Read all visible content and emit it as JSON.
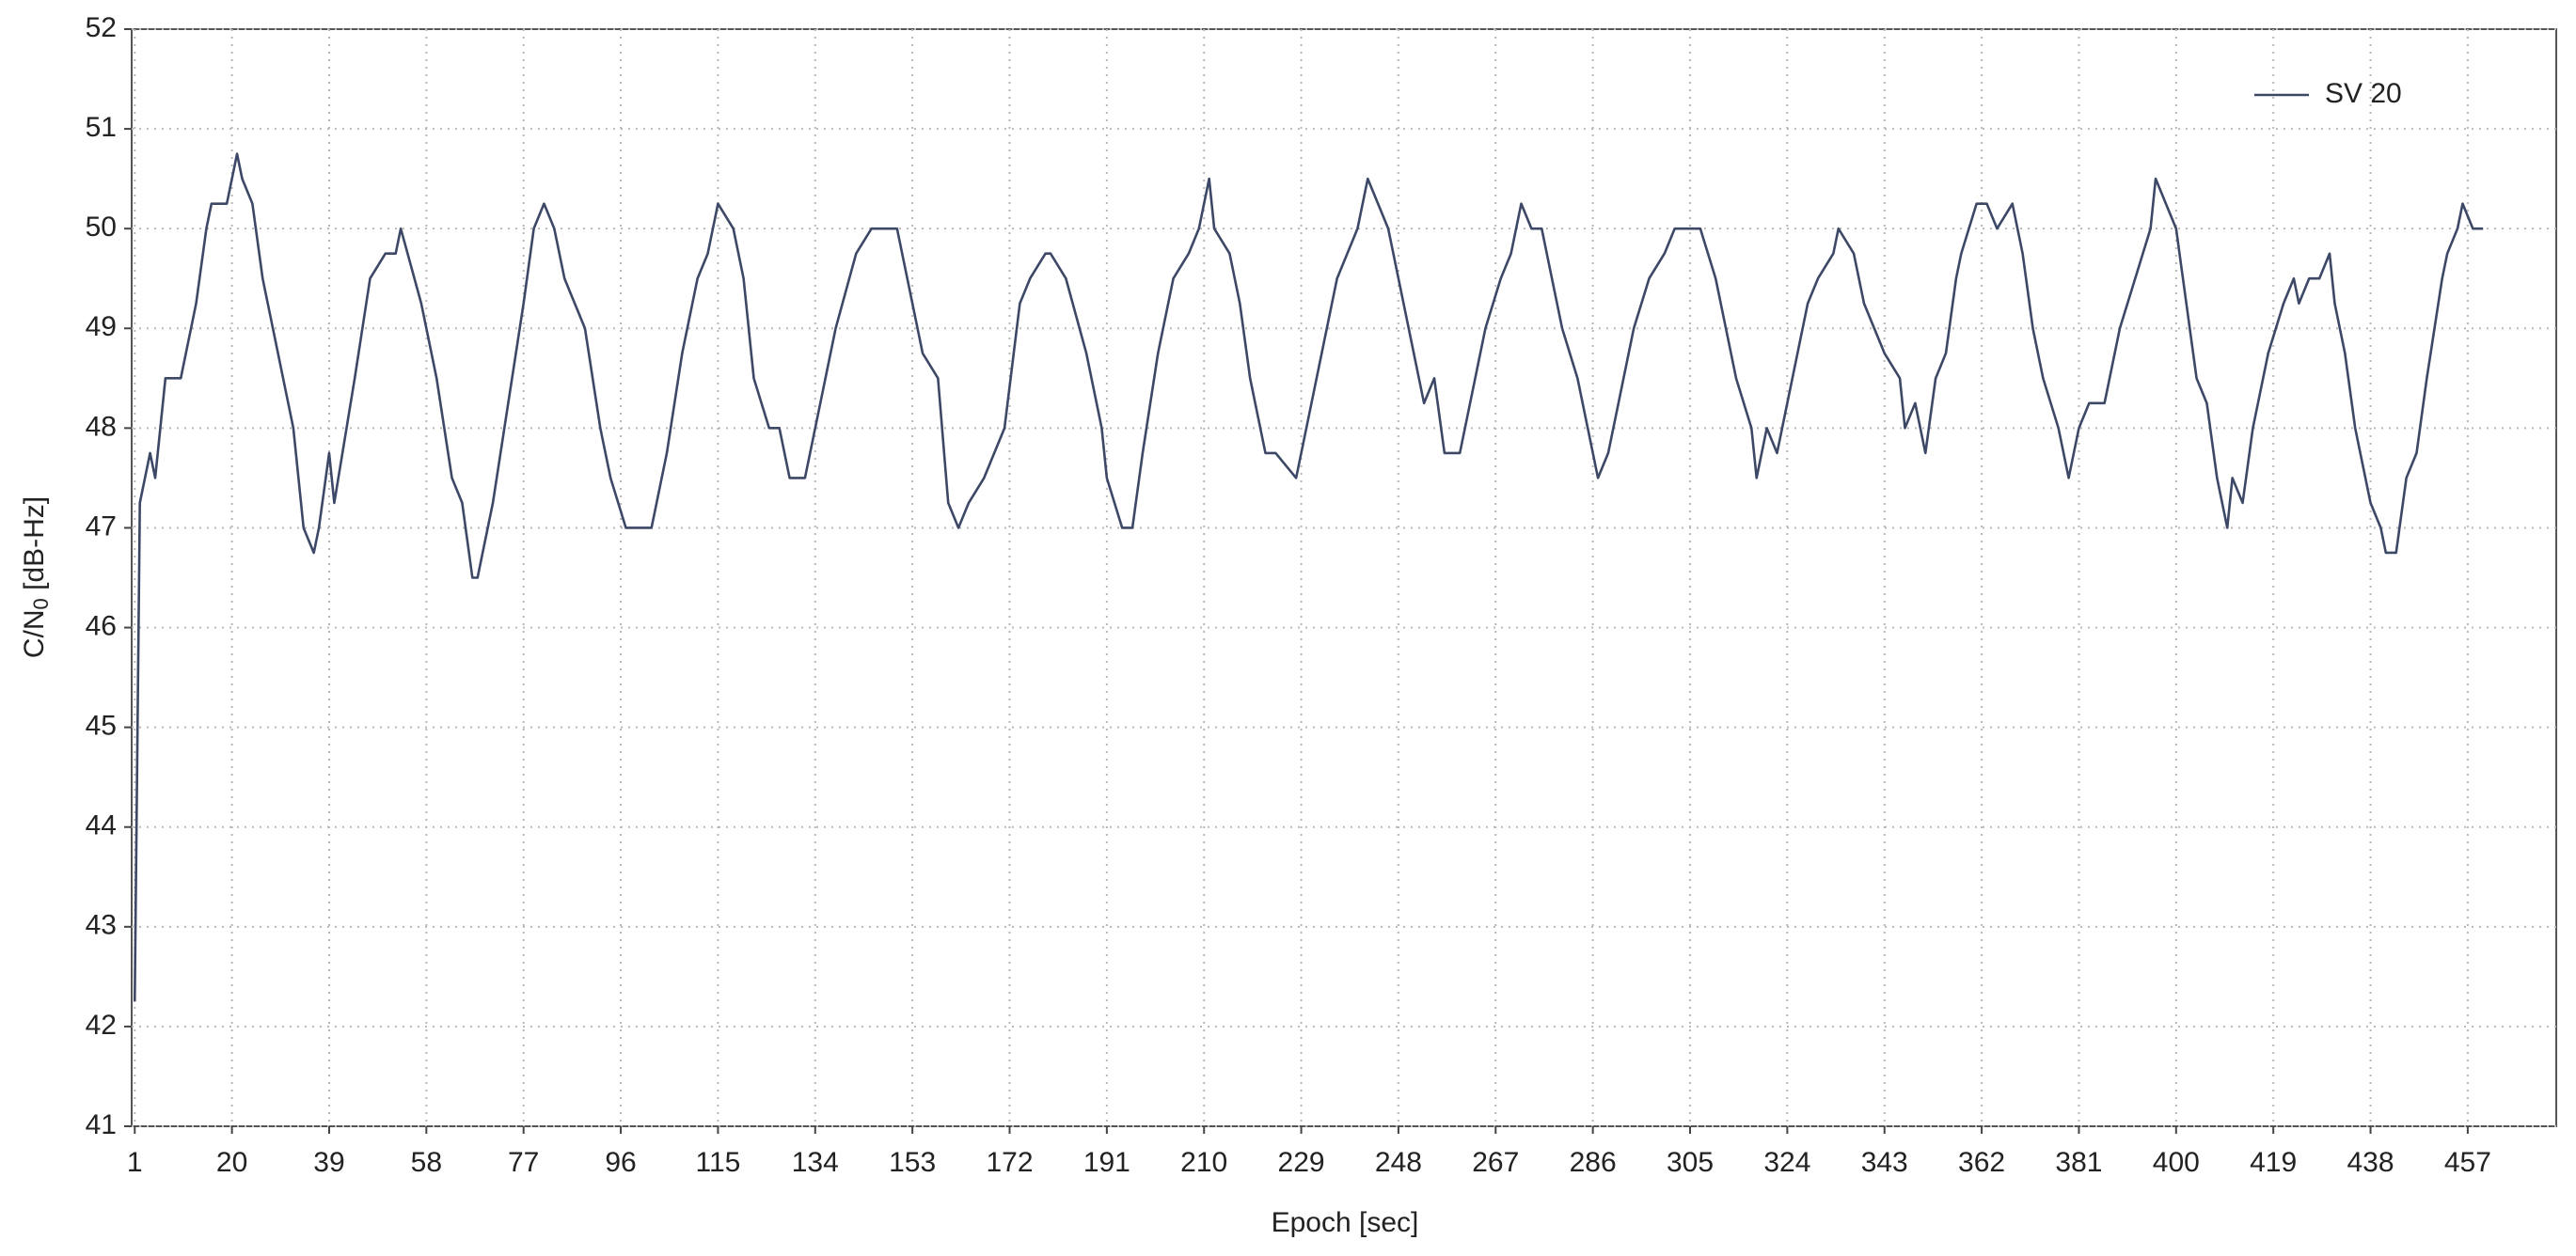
{
  "chart_data": {
    "type": "line",
    "x_label": "Epoch [sec]",
    "y_label": {
      "main": "C/N",
      "subscript": "0",
      "suffix": " [dB-Hz]"
    },
    "xlim": [
      0.4,
      474.3
    ],
    "ylim": [
      41,
      52
    ],
    "xticks": [
      1,
      20,
      39,
      58,
      77,
      96,
      115,
      134,
      153,
      172,
      191,
      210,
      229,
      248,
      267,
      286,
      305,
      324,
      343,
      362,
      381,
      400,
      419,
      438,
      457
    ],
    "yticks": [
      41,
      42,
      43,
      44,
      45,
      46,
      47,
      48,
      49,
      50,
      51,
      52
    ],
    "grid": true,
    "legend": "upper right",
    "x": [
      1,
      2,
      4,
      5,
      7,
      10,
      13,
      15,
      16,
      19,
      21,
      22,
      24,
      26,
      29,
      32,
      34,
      36,
      37,
      39,
      40,
      44,
      47,
      50,
      52,
      53,
      57,
      60,
      63,
      65,
      67,
      68,
      71,
      74,
      77,
      79,
      81,
      83,
      85,
      87,
      89,
      92,
      94,
      97,
      102,
      105,
      108,
      111,
      113,
      115,
      118,
      120,
      122,
      125,
      127,
      129,
      132,
      135,
      138,
      142,
      145,
      150,
      152,
      155,
      158,
      160,
      162,
      164,
      167,
      171,
      174,
      176,
      179,
      180,
      183,
      187,
      190,
      191,
      194,
      196,
      198,
      201,
      204,
      207,
      209,
      211,
      212,
      215,
      217,
      219,
      222,
      224,
      228,
      230,
      233,
      236,
      240,
      242,
      244,
      246,
      249,
      251,
      253,
      255,
      257,
      260,
      262,
      265,
      268,
      270,
      272,
      274,
      276,
      278,
      280,
      283,
      285,
      287,
      289,
      291,
      294,
      297,
      300,
      302,
      307,
      310,
      312,
      314,
      317,
      318,
      320,
      322,
      325,
      328,
      330,
      333,
      334,
      337,
      339,
      341,
      343,
      346,
      347,
      349,
      351,
      353,
      355,
      357,
      358,
      361,
      363,
      365,
      368,
      370,
      372,
      374,
      377,
      379,
      381,
      383,
      386,
      389,
      392,
      395,
      396,
      398,
      400,
      402,
      404,
      406,
      408,
      410,
      411,
      413,
      415,
      418,
      421,
      423,
      424,
      426,
      428,
      430,
      431,
      433,
      435,
      438,
      440,
      441,
      443,
      445,
      447,
      449,
      452,
      453,
      455,
      456,
      458,
      460
    ],
    "series": [
      {
        "name": "SV 20",
        "color": "#3d4866",
        "values": [
          42.25,
          47.25,
          47.75,
          47.5,
          48.5,
          48.5,
          49.25,
          50.0,
          50.25,
          50.25,
          50.75,
          50.5,
          50.25,
          49.5,
          48.75,
          48.0,
          47.0,
          46.75,
          47.0,
          47.75,
          47.25,
          48.5,
          49.5,
          49.75,
          49.75,
          50.0,
          49.25,
          48.5,
          47.5,
          47.25,
          46.5,
          46.5,
          47.25,
          48.25,
          49.25,
          50.0,
          50.25,
          50.0,
          49.5,
          49.25,
          49.0,
          48.0,
          47.5,
          47.0,
          47.0,
          47.75,
          48.75,
          49.5,
          49.75,
          50.25,
          50.0,
          49.5,
          48.5,
          48.0,
          48.0,
          47.5,
          47.5,
          48.25,
          49.0,
          49.75,
          50.0,
          50.0,
          49.5,
          48.75,
          48.5,
          47.25,
          47.0,
          47.25,
          47.5,
          48.0,
          49.25,
          49.5,
          49.75,
          49.75,
          49.5,
          48.75,
          48.0,
          47.5,
          47.0,
          47.0,
          47.75,
          48.75,
          49.5,
          49.75,
          50.0,
          50.5,
          50.0,
          49.75,
          49.25,
          48.5,
          47.75,
          47.75,
          47.5,
          48.0,
          48.75,
          49.5,
          50.0,
          50.5,
          50.25,
          50.0,
          49.25,
          48.75,
          48.25,
          48.5,
          47.75,
          47.75,
          48.25,
          49.0,
          49.5,
          49.75,
          50.25,
          50.0,
          50.0,
          49.5,
          49.0,
          48.5,
          48.0,
          47.5,
          47.75,
          48.25,
          49.0,
          49.5,
          49.75,
          50.0,
          50.0,
          49.5,
          49.0,
          48.5,
          48.0,
          47.5,
          48.0,
          47.75,
          48.5,
          49.25,
          49.5,
          49.75,
          50.0,
          49.75,
          49.25,
          49.0,
          48.75,
          48.5,
          48.0,
          48.25,
          47.75,
          48.5,
          48.75,
          49.5,
          49.75,
          50.25,
          50.25,
          50.0,
          50.25,
          49.75,
          49.0,
          48.5,
          48.0,
          47.5,
          48.0,
          48.25,
          48.25,
          49.0,
          49.5,
          50.0,
          50.5,
          50.25,
          50.0,
          49.25,
          48.5,
          48.25,
          47.5,
          47.0,
          47.5,
          47.25,
          48.0,
          48.75,
          49.25,
          49.5,
          49.25,
          49.5,
          49.5,
          49.75,
          49.25,
          48.75,
          48.0,
          47.25,
          47.0,
          46.75,
          46.75,
          47.5,
          47.75,
          48.5,
          49.5,
          49.75,
          50.0,
          50.25,
          50.0,
          50.0
        ]
      }
    ]
  }
}
